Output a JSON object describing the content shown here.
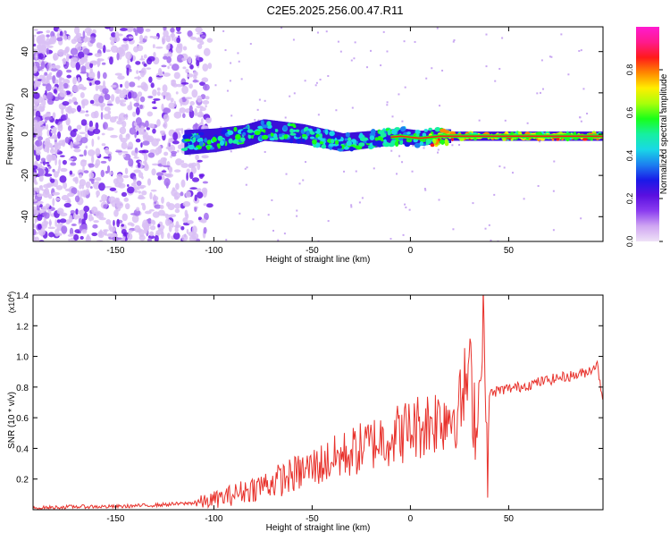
{
  "title": "C2E5.2025.256.00.47.R11",
  "colors": {
    "snr_line": "#e8322c",
    "cbar_stops": [
      "#efe2f7",
      "#cfa6f2",
      "#8b3cf0",
      "#5a10e0",
      "#1a1ae8",
      "#1c7ff0",
      "#19d8e6",
      "#16f0a0",
      "#19ff19",
      "#a8ff0a",
      "#ffee00",
      "#ff8800",
      "#ff1a1a",
      "#ff1a8c",
      "#ff1ad0"
    ]
  },
  "chart_data": [
    {
      "type": "heatmap",
      "name": "spectrogram",
      "xlabel": "Height of straight line (km)",
      "ylabel": "Frequency (Hz)",
      "xlim": [
        -192,
        98
      ],
      "ylim": [
        -52,
        52
      ],
      "x_ticks": [
        -150,
        -100,
        -50,
        0,
        50
      ],
      "x_tick_labels": [
        "-150",
        "-100",
        "-50",
        "0",
        "50"
      ],
      "y_ticks": [
        -40,
        -20,
        0,
        20,
        40
      ],
      "y_tick_labels": [
        "-40",
        "-20",
        "0",
        "20",
        "40"
      ],
      "signal_track": {
        "x": [
          -115,
          -100,
          -85,
          -75,
          -65,
          -55,
          -45,
          -35,
          -25,
          -15,
          -5,
          5,
          15,
          25,
          35,
          50,
          70,
          98
        ],
        "y": [
          -4,
          -3,
          -1,
          2,
          1,
          0,
          -2,
          -4,
          -3,
          -2,
          -1,
          -2,
          -1,
          -1,
          -1,
          -1,
          -1,
          -1
        ]
      },
      "colorbar": {
        "label": "Normalized spectral amplitude",
        "range": [
          0,
          1
        ],
        "ticks": [
          0.0,
          0.2,
          0.4,
          0.6,
          0.8
        ],
        "tick_labels": [
          "0.0",
          "0.2",
          "0.4",
          "0.6",
          "0.8"
        ]
      }
    },
    {
      "type": "line",
      "name": "snr",
      "xlabel": "Height of straight line (km)",
      "ylabel": "SNR (10 * v/v)",
      "multiplier_label": "(x10",
      "multiplier_exp": "4",
      "multiplier_close": ")",
      "xlim": [
        -192,
        98
      ],
      "ylim": [
        0,
        1.4
      ],
      "x_ticks": [
        -150,
        -100,
        -50,
        0,
        50
      ],
      "x_tick_labels": [
        "-150",
        "-100",
        "-50",
        "0",
        "50"
      ],
      "y_ticks": [
        0.2,
        0.4,
        0.6,
        0.8,
        1.0,
        1.2,
        1.4
      ],
      "y_tick_labels": [
        "0.2",
        "0.4",
        "0.6",
        "0.8",
        "1.0",
        "1.2",
        "1.4"
      ],
      "series": [
        {
          "name": "SNR",
          "x": [
            -192,
            -170,
            -150,
            -130,
            -115,
            -105,
            -95,
            -85,
            -75,
            -65,
            -55,
            -45,
            -35,
            -25,
            -15,
            -5,
            5,
            15,
            25,
            30,
            33,
            35,
            37,
            39,
            40,
            45,
            55,
            65,
            75,
            85,
            90,
            95,
            98
          ],
          "y": [
            0.01,
            0.02,
            0.02,
            0.03,
            0.04,
            0.05,
            0.08,
            0.12,
            0.16,
            0.2,
            0.25,
            0.3,
            0.35,
            0.4,
            0.46,
            0.5,
            0.55,
            0.6,
            0.66,
            0.9,
            0.6,
            0.7,
            1.4,
            0.2,
            0.75,
            0.78,
            0.8,
            0.83,
            0.86,
            0.88,
            0.9,
            0.95,
            0.72
          ]
        }
      ]
    }
  ]
}
